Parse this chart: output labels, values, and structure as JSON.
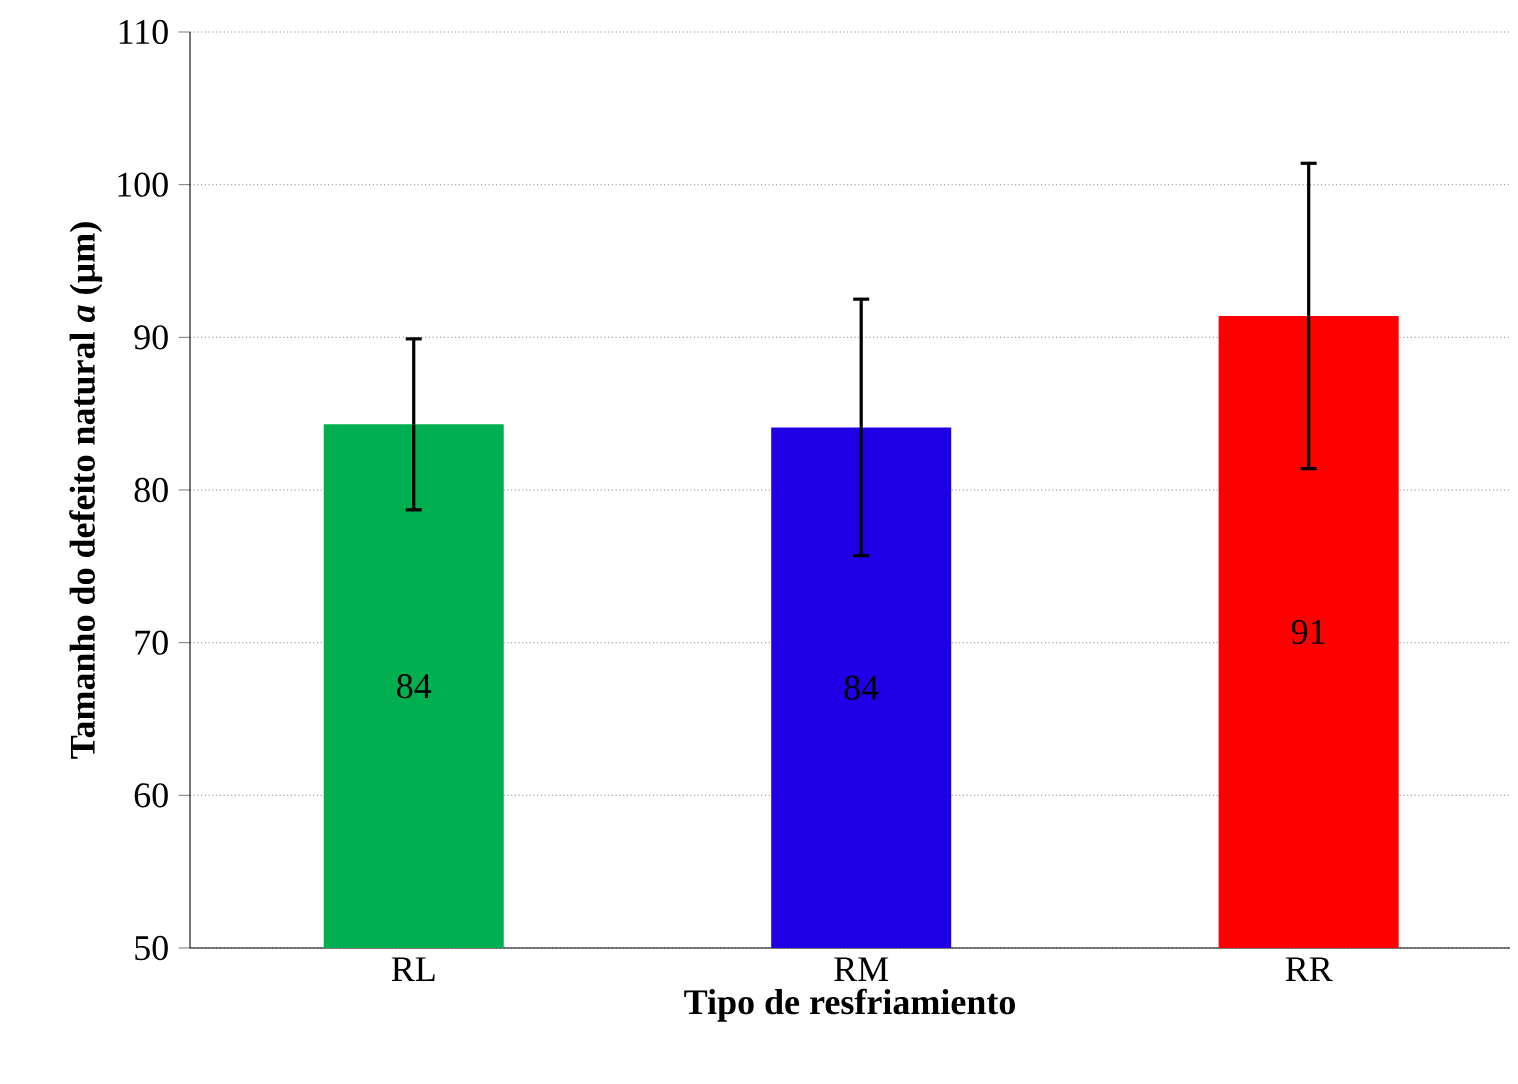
{
  "chart_data": {
    "type": "bar",
    "xlabel": "Tipo de resfriamiento",
    "ylabel": "Tamanho do defeito natural  *a* (µm)",
    "categories": [
      "RL",
      "RM",
      "RR"
    ],
    "values": [
      84.3,
      84.1,
      91.4
    ],
    "colors": [
      "#00b050",
      "#1f00e6",
      "#ff0000"
    ],
    "errors": [
      5.6,
      8.4,
      10.0
    ],
    "value_labels": [
      "84",
      "84",
      "91"
    ],
    "ylim": [
      50,
      110
    ],
    "yticks": [
      50,
      60,
      70,
      80,
      90,
      100,
      110
    ],
    "grid": "y"
  }
}
